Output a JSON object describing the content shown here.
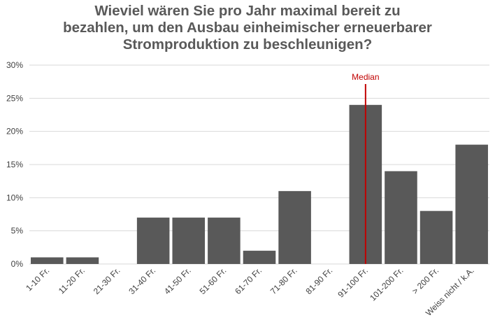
{
  "chart_data": {
    "type": "bar",
    "title_lines": [
      "Wieviel wären Sie pro Jahr maximal bereit zu",
      "bezahlen, um den Ausbau einheimischer erneuerbarer",
      "Stromproduktion zu beschleunigen?"
    ],
    "categories": [
      "1-10 Fr.",
      "11-20 Fr.",
      "21-30 Fr.",
      "31-40 Fr.",
      "41-50 Fr.",
      "51-60 Fr.",
      "61-70 Fr.",
      "71-80 Fr.",
      "81-90 Fr.",
      "91-100 Fr.",
      "101-200 Fr.",
      "> 200 Fr.",
      "Weiss nicht / k.A."
    ],
    "values": [
      1,
      1,
      0,
      7,
      7,
      7,
      2,
      11,
      0,
      24,
      14,
      8,
      18
    ],
    "y_ticks": [
      "0%",
      "5%",
      "10%",
      "15%",
      "20%",
      "25%",
      "30%"
    ],
    "ylim": [
      0,
      30
    ],
    "grid": true,
    "bar_color": "#595959",
    "gridline_color": "#d9d9d9",
    "annotation": {
      "label": "Median",
      "category": "91-100 Fr.",
      "color": "#c00000"
    }
  }
}
